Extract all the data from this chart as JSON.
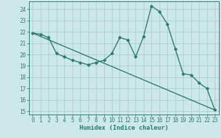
{
  "xlabel": "Humidex (Indice chaleur)",
  "background_color": "#cde8e8",
  "grid_color": "#aacccc",
  "line_color": "#2a7a6a",
  "xlim": [
    -0.5,
    23.5
  ],
  "ylim": [
    14.7,
    24.7
  ],
  "yticks": [
    15,
    16,
    17,
    18,
    19,
    20,
    21,
    22,
    23,
    24
  ],
  "xticks": [
    0,
    1,
    2,
    3,
    4,
    5,
    6,
    7,
    8,
    9,
    10,
    11,
    12,
    13,
    14,
    15,
    16,
    17,
    18,
    19,
    20,
    21,
    22,
    23
  ],
  "line1_x": [
    0,
    1,
    2,
    3,
    4,
    5,
    6,
    7,
    8,
    9,
    10,
    11,
    12,
    13,
    14,
    15,
    16,
    17,
    18,
    19,
    20,
    21,
    22,
    23
  ],
  "line1_y": [
    21.9,
    21.8,
    21.5,
    20.1,
    19.8,
    19.5,
    19.3,
    19.1,
    19.3,
    19.5,
    20.1,
    21.5,
    21.3,
    19.8,
    21.6,
    24.3,
    23.8,
    22.7,
    20.5,
    18.3,
    18.2,
    17.5,
    17.0,
    15.1
  ],
  "line2_x": [
    0,
    23
  ],
  "line2_y": [
    21.9,
    15.1
  ],
  "marker_size": 2.5,
  "linewidth": 1.0,
  "tick_fontsize": 5.5,
  "xlabel_fontsize": 6.5
}
